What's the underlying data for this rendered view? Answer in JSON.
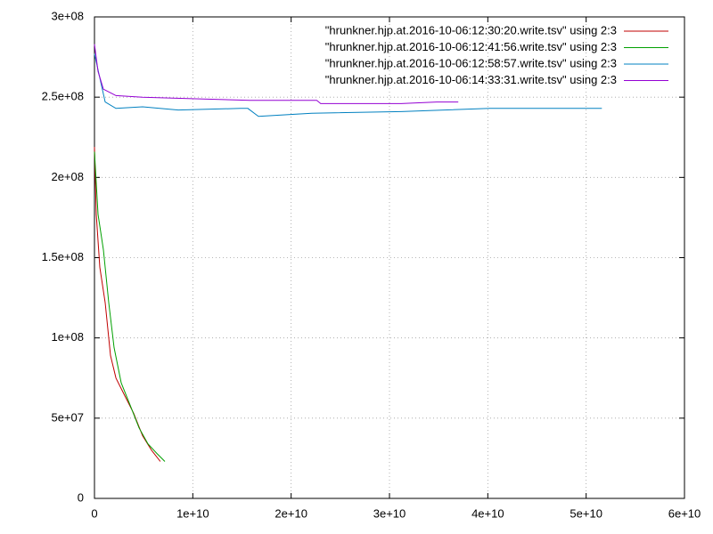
{
  "chart_data": {
    "type": "line",
    "xlim": [
      0,
      60000000000
    ],
    "xticks": [
      0,
      {
        "value": 10000000000,
        "label": "1e+10"
      },
      {
        "value": 20000000000,
        "label": "2e+10"
      },
      {
        "value": 30000000000,
        "label": "3e+10"
      },
      {
        "value": 40000000000,
        "label": "4e+10"
      },
      {
        "value": 50000000000,
        "label": "5e+10"
      },
      {
        "value": 60000000000,
        "label": "6e+10"
      }
    ],
    "ylim": [
      0,
      300000000
    ],
    "yticks": [
      0,
      {
        "value": 50000000,
        "label": "5e+07"
      },
      {
        "value": 100000000,
        "label": "1e+08"
      },
      {
        "value": 150000000,
        "label": "1.5e+08"
      },
      {
        "value": 200000000,
        "label": "2e+08"
      },
      {
        "value": 250000000,
        "label": "2.5e+08"
      },
      {
        "value": 300000000,
        "label": "3e+08"
      }
    ],
    "grid": true,
    "legend": "top-right",
    "series": [
      {
        "name": "\"hrunkner.hjp.at.2016-10-06:12:30:20.write.tsv\" using 2:3",
        "color": "#c00000",
        "x": [
          0,
          180000000,
          540000000,
          1090000000,
          1630000000,
          2180000000,
          3080000000,
          3990000000,
          4890000000,
          5800000000,
          6700000000
        ],
        "values": [
          219000000,
          177000000,
          144000000,
          122000000,
          89000000,
          75000000,
          64000000,
          53000000,
          39000000,
          30000000,
          23000000
        ]
      },
      {
        "name": "\"hrunkner.hjp.at.2016-10-06:12:41:56.write.tsv\" using 2:3",
        "color": "#00a000",
        "x": [
          0,
          360000000,
          910000000,
          1450000000,
          1990000000,
          2720000000,
          3630000000,
          4530000000,
          5440000000,
          6340000000,
          7160000000
        ],
        "values": [
          216000000,
          177000000,
          155000000,
          122000000,
          94000000,
          72000000,
          58000000,
          44000000,
          34000000,
          28000000,
          23000000
        ]
      },
      {
        "name": "\"hrunkner.hjp.at.2016-10-06:12:58:57.write.tsv\" using 2:3",
        "color": "#0080c0",
        "x": [
          0,
          1090000000,
          2180000000,
          4890000000,
          8520000000,
          14860000000,
          15600000000,
          16680000000,
          22100000000,
          31200000000,
          40200000000,
          51600000000
        ],
        "values": [
          277000000,
          247000000,
          243000000,
          244000000,
          242000000,
          243000000,
          243000000,
          238000000,
          240000000,
          241000000,
          243000000,
          243000000
        ]
      },
      {
        "name": "\"hrunkner.hjp.at.2016-10-06:14:33:31.write.tsv\" using 2:3",
        "color": "#9400d3",
        "x": [
          0,
          360000000,
          910000000,
          2180000000,
          4890000000,
          10300000000,
          15800000000,
          22600000000,
          23000000000,
          31200000000,
          34800000000,
          37000000000
        ],
        "values": [
          283000000,
          266000000,
          255000000,
          251000000,
          250000000,
          249000000,
          248000000,
          248000000,
          246000000,
          246000000,
          247000000,
          247000000
        ]
      }
    ]
  }
}
